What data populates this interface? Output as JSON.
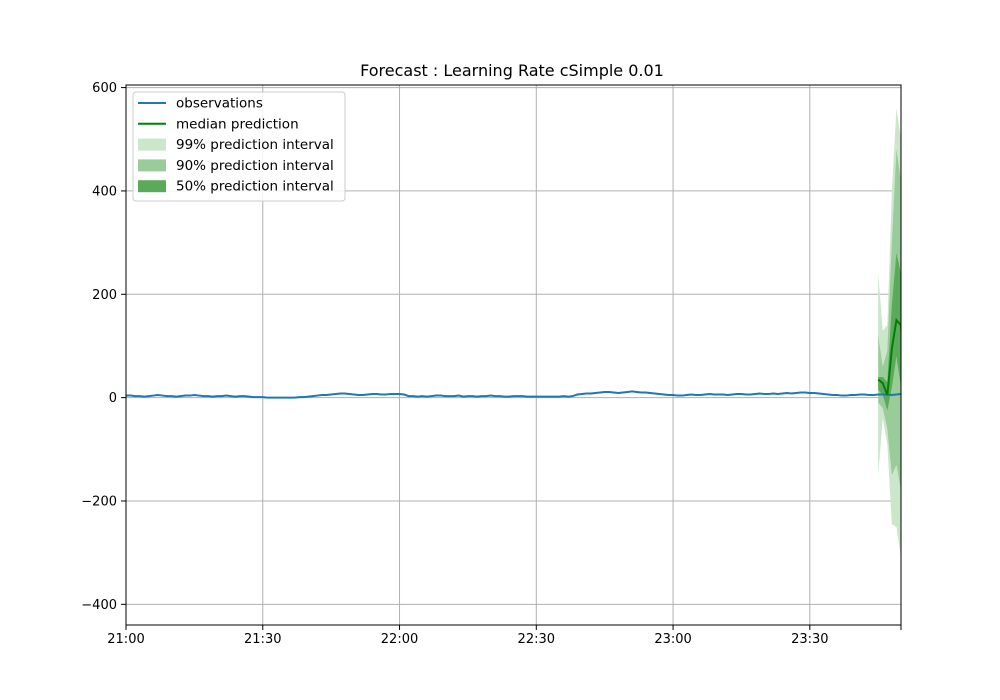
{
  "chart_data": {
    "type": "line",
    "title": "Forecast : Learning Rate cSimple 0.01",
    "xlabel": "",
    "ylabel": "",
    "x_axis": {
      "type": "time",
      "start": "21:00",
      "end": "23:50",
      "ticks": [
        "21:00",
        "21:30",
        "22:00",
        "22:30",
        "23:00",
        "23:30"
      ]
    },
    "ylim": [
      -440,
      605
    ],
    "yticks": [
      600,
      400,
      200,
      0,
      -200,
      -400
    ],
    "yticklabels": [
      "600",
      "400",
      "200",
      "0",
      "−200",
      "−400"
    ],
    "grid": true,
    "legend_position": "upper-left",
    "colors": {
      "observations": "#1f77b4",
      "median": "#008000",
      "pi99": "#cce6cc",
      "pi90": "#99cc99",
      "pi50": "#5aaa5a"
    },
    "legend": [
      {
        "label": "observations",
        "kind": "line",
        "color": "#1f77b4"
      },
      {
        "label": "median prediction",
        "kind": "line",
        "color": "#008000"
      },
      {
        "label": "99% prediction interval",
        "kind": "patch",
        "color": "#cce6cc"
      },
      {
        "label": "90% prediction interval",
        "kind": "patch",
        "color": "#99cc99"
      },
      {
        "label": "50% prediction interval",
        "kind": "patch",
        "color": "#5aaa5a"
      }
    ],
    "observations": {
      "name": "observations",
      "start": "21:00",
      "step_minutes": 1,
      "values": [
        4,
        4,
        3,
        3,
        2,
        3,
        4,
        5,
        4,
        3,
        3,
        2,
        3,
        4,
        4,
        5,
        4,
        3,
        3,
        2,
        3,
        3,
        4,
        3,
        2,
        3,
        3,
        2,
        1,
        1,
        1,
        0,
        0,
        0,
        0,
        0,
        0,
        0,
        1,
        1,
        2,
        3,
        4,
        5,
        5,
        6,
        7,
        8,
        8,
        7,
        6,
        5,
        5,
        6,
        7,
        7,
        6,
        6,
        7,
        7,
        7,
        6,
        3,
        3,
        2,
        3,
        2,
        3,
        4,
        4,
        3,
        3,
        3,
        4,
        2,
        3,
        3,
        2,
        3,
        3,
        4,
        3,
        3,
        2,
        2,
        3,
        3,
        3,
        2,
        2,
        2,
        2,
        2,
        2,
        2,
        2,
        3,
        2,
        3,
        6,
        7,
        8,
        8,
        9,
        10,
        11,
        11,
        10,
        9,
        10,
        11,
        12,
        11,
        10,
        10,
        9,
        8,
        7,
        6,
        5,
        5,
        4,
        4,
        5,
        6,
        5,
        5,
        6,
        7,
        6,
        6,
        6,
        5,
        6,
        7,
        7,
        6,
        6,
        7,
        8,
        7,
        7,
        8,
        7,
        8,
        9,
        8,
        9,
        10,
        10,
        9,
        9,
        8,
        7,
        6,
        5,
        5,
        4,
        4,
        5,
        5,
        6,
        6,
        5,
        5,
        6,
        6,
        6,
        5,
        6,
        7,
        6,
        6,
        5,
        5,
        6,
        6,
        6
      ]
    },
    "forecast": {
      "start": "23:45",
      "step_minutes": 1,
      "median": [
        35,
        28,
        5,
        95,
        150,
        140,
        20,
        10,
        120,
        5,
        15,
        -20,
        -50
      ],
      "p50": {
        "lower": [
          15,
          5,
          -25,
          20,
          80,
          20,
          -40,
          -20,
          20,
          -40,
          -15,
          -45,
          -80
        ],
        "upper": [
          40,
          40,
          30,
          180,
          280,
          240,
          70,
          60,
          220,
          60,
          50,
          10,
          -30
        ]
      },
      "p90": {
        "lower": [
          -10,
          -20,
          -60,
          -150,
          -130,
          -180,
          -120,
          -120,
          -80,
          -190,
          -220,
          -150,
          -120
        ],
        "upper": [
          120,
          60,
          90,
          300,
          480,
          420,
          200,
          170,
          360,
          300,
          240,
          150,
          60
        ]
      },
      "p99": {
        "lower": [
          -150,
          -40,
          -90,
          -245,
          -250,
          -310,
          -330,
          -260,
          -150,
          -250,
          -320,
          -290,
          -260
        ],
        "upper": [
          240,
          130,
          140,
          400,
          560,
          500,
          300,
          240,
          390,
          360,
          300,
          330,
          220
        ]
      }
    }
  }
}
